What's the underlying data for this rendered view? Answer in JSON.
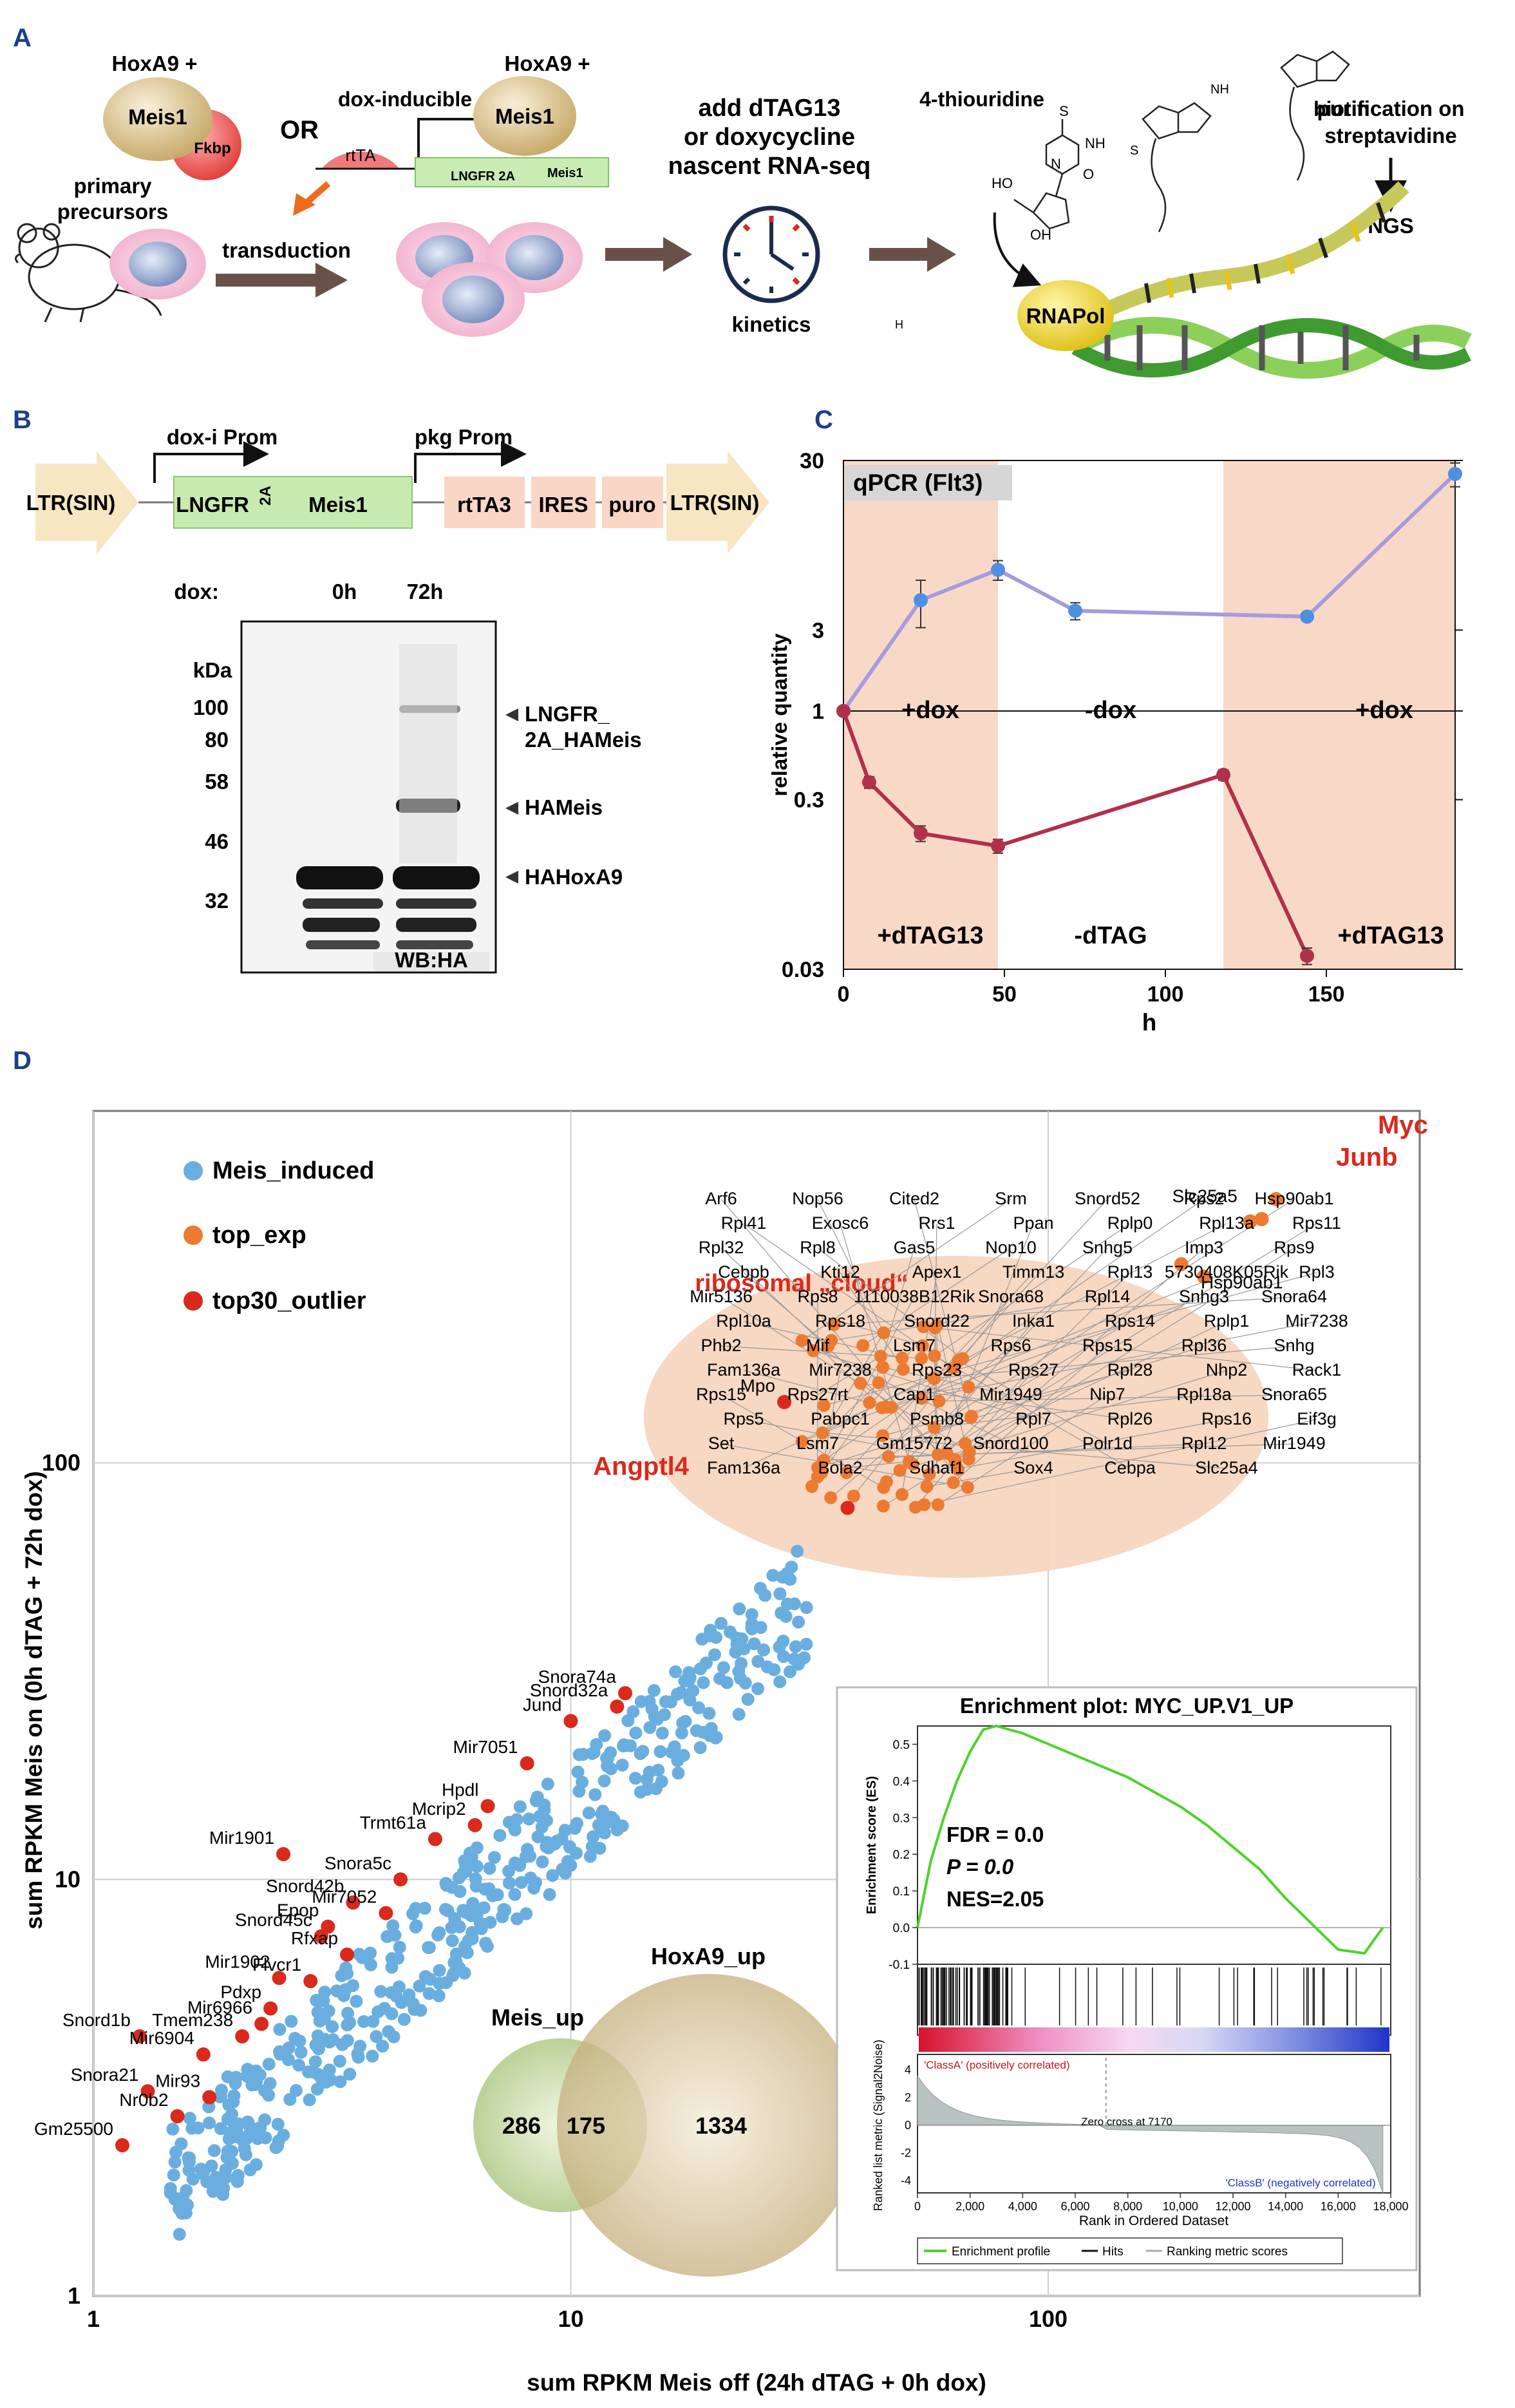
{
  "panel_labels": {
    "a": "A",
    "b": "B",
    "c": "C",
    "d": "D"
  },
  "panel_a": {
    "hoxa9_plus_1": "HoxA9 +",
    "meis1": "Meis1",
    "fkbp": "Fkbp",
    "or": "OR",
    "dox_inducible": "dox-inducible",
    "hoxa9_plus_2": "HoxA9 +",
    "meis1_2": "Meis1",
    "rtta": "rtTA",
    "lngfr_2a": "LNGFR 2A",
    "meis1_small": "Meis1",
    "primary_precursors": "primary\nprecursors",
    "transduction": "transduction",
    "add_line1": "add dTAG13",
    "add_line2": "or doxycycline",
    "add_line3": "nascent RNA-seq",
    "kinetics": "kinetics",
    "thiouridine": "4-thiouridine",
    "biotin": "biotin",
    "purification": "purification on\nstreptavidine",
    "ngs": "NGS",
    "rnapol": "RNAPol",
    "s_atom": "S",
    "oh": "OH",
    "ho": "HO",
    "nh": "NH",
    "n": "N",
    "o": "O",
    "h": "H",
    "chem_s": "S"
  },
  "panel_b": {
    "dox_i_prom": "dox-i Prom",
    "pkg_prom": "pkg Prom",
    "ltr_sin_left": "LTR(SIN)",
    "lngfr": "LNGFR",
    "two_a": "2A",
    "meis1": "Meis1",
    "rtta3": "rtTA3",
    "ires": "IRES",
    "puro": "puro",
    "ltr_sin_right": "LTR(SIN)",
    "dox_label": "dox:",
    "lane_0h": "0h",
    "lane_72h": "72h",
    "kda": "kDa",
    "markers": [
      "100",
      "80",
      "58",
      "46",
      "32"
    ],
    "band_lngfr_line1": "LNGFR_",
    "band_lngfr_line2": "2A_HAMeis",
    "band_hameis": "HAMeis",
    "band_hahoxa9": "HAHoxA9",
    "wb_label": "WB:HA"
  },
  "chart_data": [
    {
      "type": "line",
      "title": "qPCR (Flt3)",
      "xlabel": "h",
      "ylabel": "relative quantity",
      "yscale": "log",
      "ylim": [
        0.03,
        30
      ],
      "xlim": [
        0,
        190
      ],
      "x_ticks": [
        "0",
        "50",
        "100",
        "150"
      ],
      "y_ticks": [
        "30",
        "3",
        "1",
        "0.3",
        "0.03"
      ],
      "shaded_periods": [
        [
          0,
          48
        ],
        [
          118,
          190
        ]
      ],
      "period_labels_top": [
        "+dox",
        "-dox",
        "+dox"
      ],
      "period_labels_bottom": [
        "+dTAG13",
        "-dTAG",
        "+dTAG13"
      ],
      "series": [
        {
          "name": "dox",
          "color": "#a79bdd",
          "x": [
            0,
            24,
            48,
            72,
            144,
            190
          ],
          "y": [
            1,
            4.5,
            6.8,
            3.9,
            3.6,
            25
          ],
          "err": [
            0,
            1.4,
            0.9,
            0.45,
            0,
            4
          ]
        },
        {
          "name": "dTAG13",
          "color": "#b1304a",
          "x": [
            0,
            8,
            24,
            48,
            118,
            144
          ],
          "y": [
            1,
            0.38,
            0.19,
            0.16,
            0.42,
            0.036
          ],
          "err": [
            0,
            0.03,
            0.02,
            0.015,
            0.03,
            0.004
          ]
        }
      ]
    },
    {
      "type": "scatter",
      "xlabel": "sum RPKM Meis off (24h dTAG + 0h dox)",
      "ylabel": "sum RPKM Meis on (0h dTAG + 72h dox)",
      "xscale": "log",
      "yscale": "log",
      "xlim": [
        1,
        600
      ],
      "ylim": [
        1,
        700
      ],
      "x_ticks": [
        "1",
        "10",
        "100"
      ],
      "y_ticks": [
        "1",
        "10",
        "100"
      ],
      "legend": [
        "Meis_induced",
        "top_exp",
        "top30_outlier"
      ],
      "legend_colors": [
        "#6aaee0",
        "#ec7a30",
        "#d92a1c"
      ],
      "ribosomal_cloud_label": "ribosomal „cloud“",
      "highlight_labels": [
        "Myc",
        "Junb",
        "Angptl4"
      ],
      "top_exp_points": [
        {
          "label": "Myc",
          "x": 300,
          "y": 430
        },
        {
          "label": "Junb",
          "x": 280,
          "y": 385
        },
        {
          "label": "Slc25a5",
          "x": 265,
          "y": 380
        },
        {
          "label": "Hsp90ab1",
          "x": 212,
          "y": 280
        },
        {
          "label": "Nop56",
          "x": 190,
          "y": 300
        }
      ],
      "outlier_points": [
        {
          "label": "Angptl4",
          "x": 38,
          "y": 78
        },
        {
          "label": "Mpo",
          "x": 28,
          "y": 140
        },
        {
          "label": "Snora74a",
          "x": 13,
          "y": 28
        },
        {
          "label": "Snord32a",
          "x": 12.5,
          "y": 26
        },
        {
          "label": "Jund",
          "x": 10,
          "y": 24
        },
        {
          "label": "Mir7051",
          "x": 8.1,
          "y": 19
        },
        {
          "label": "Hpdl",
          "x": 6.7,
          "y": 15
        },
        {
          "label": "Mcrip2",
          "x": 6.3,
          "y": 13.5
        },
        {
          "label": "Trmt61a",
          "x": 5.2,
          "y": 12.5
        },
        {
          "label": "Mir1901",
          "x": 2.5,
          "y": 11.5
        },
        {
          "label": "Snora5c",
          "x": 4.4,
          "y": 10
        },
        {
          "label": "Snord42b",
          "x": 3.5,
          "y": 8.8
        },
        {
          "label": "Mir7052",
          "x": 4.1,
          "y": 8.3
        },
        {
          "label": "Epop",
          "x": 3.1,
          "y": 7.7
        },
        {
          "label": "Snord45c",
          "x": 3.0,
          "y": 7.3
        },
        {
          "label": "Rfxap",
          "x": 3.4,
          "y": 6.6
        },
        {
          "label": "Mir1902",
          "x": 2.45,
          "y": 5.8
        },
        {
          "label": "Flvcr1",
          "x": 2.85,
          "y": 5.7
        },
        {
          "label": "Pdxp",
          "x": 2.35,
          "y": 4.9
        },
        {
          "label": "Mir6966",
          "x": 2.25,
          "y": 4.5
        },
        {
          "label": "Tmem238",
          "x": 2.05,
          "y": 4.2
        },
        {
          "label": "Snord1b",
          "x": 1.25,
          "y": 4.2
        },
        {
          "label": "Mir6904",
          "x": 1.7,
          "y": 3.8
        },
        {
          "label": "Snora21",
          "x": 1.3,
          "y": 3.1
        },
        {
          "label": "Mir93",
          "x": 1.75,
          "y": 3.0
        },
        {
          "label": "Nr0b2",
          "x": 1.5,
          "y": 2.7
        },
        {
          "label": "Gm25500",
          "x": 1.15,
          "y": 2.3
        }
      ],
      "cloud_labels": [
        "Arf6",
        "Nop56",
        "Cited2",
        "Srm",
        "Snord52",
        "Rps2",
        "Hsp90ab1",
        "Rpl41",
        "Exosc6",
        "Rrs1",
        "Ppan",
        "Rplp0",
        "Rpl13a",
        "Rps11",
        "Rpl32",
        "Rpl8",
        "Gas5",
        "Nop10",
        "Snhg5",
        "Imp3",
        "Rps9",
        "Cebpb",
        "Kti12",
        "Apex1",
        "Timm13",
        "Rpl13",
        "5730408K05Rik",
        "Rpl3",
        "Mir5136",
        "Rps8",
        "1110038B12Rik",
        "Snora68",
        "Rpl14",
        "Snhg3",
        "Snora64",
        "Rpl10a",
        "Rps18",
        "Snord22",
        "Inka1",
        "Rps14",
        "Rplp1",
        "Mir7238",
        "Phb2",
        "Mif",
        "Lsm7",
        "Rps6",
        "Rps15",
        "Rpl36",
        "Snhg",
        "Fam136a",
        "Mir7238",
        "Rps23",
        "Rps27",
        "Rpl28",
        "Nhp2",
        "Rack1",
        "Rps15",
        "Rps27rt",
        "Cap1",
        "Mir1949",
        "Nip7",
        "Rpl18a",
        "Snora65",
        "Rps5",
        "Pabpc1",
        "Psmb8",
        "Rpl7",
        "Rpl26",
        "Rps16",
        "Eif3g",
        "Set",
        "Lsm7",
        "Gm15772",
        "Snord100",
        "Polr1d",
        "Rpl12",
        "Mir1949",
        "Fam136a",
        "Bola2",
        "Sdhaf1",
        "Sox4",
        "Cebpa",
        "Slc25a4"
      ],
      "venn": {
        "left_title": "Meis_up",
        "right_title": "HoxA9_up",
        "left_only": "286",
        "overlap": "175",
        "right_only": "1334"
      }
    },
    {
      "type": "line",
      "title": "Enrichment plot: MYC_UP.V1_UP",
      "ylabel": "Enrichment score (ES)",
      "ylabel2": "Ranked list metric (Signal2Noise)",
      "xlabel": "Rank in Ordered Dataset",
      "x": [
        0,
        500,
        1000,
        1500,
        2000,
        2500,
        3000,
        4000,
        5000,
        6000,
        7000,
        8000,
        9000,
        10000,
        11000,
        12000,
        13000,
        14000,
        15000,
        16000,
        17000,
        17700
      ],
      "y": [
        0.0,
        0.18,
        0.3,
        0.4,
        0.48,
        0.54,
        0.55,
        0.53,
        0.5,
        0.47,
        0.44,
        0.41,
        0.37,
        0.33,
        0.28,
        0.22,
        0.16,
        0.08,
        0.01,
        -0.06,
        -0.07,
        0.0
      ],
      "ylim": [
        -0.1,
        0.55
      ],
      "y_ticks": [
        "0.5",
        "0.4",
        "0.3",
        "0.2",
        "0.1",
        "0.0",
        "-0.1"
      ],
      "x_ticks": [
        "0",
        "2,000",
        "4,000",
        "6,000",
        "8,000",
        "10,000",
        "12,000",
        "14,000",
        "16,000",
        "18,000"
      ],
      "metric_ticks": [
        "4",
        "2",
        "0",
        "-2",
        "-4"
      ],
      "fdr": "FDR = 0.0",
      "p": "P = 0.0",
      "nes": "NES=2.05",
      "class_a": "'ClassA' (positively correlated)",
      "class_b": "'ClassB' (negatively correlated)",
      "zero_cross": "Zero cross at 7170",
      "legend": [
        "Enrichment profile",
        "Hits",
        "Ranking metric scores"
      ]
    }
  ]
}
